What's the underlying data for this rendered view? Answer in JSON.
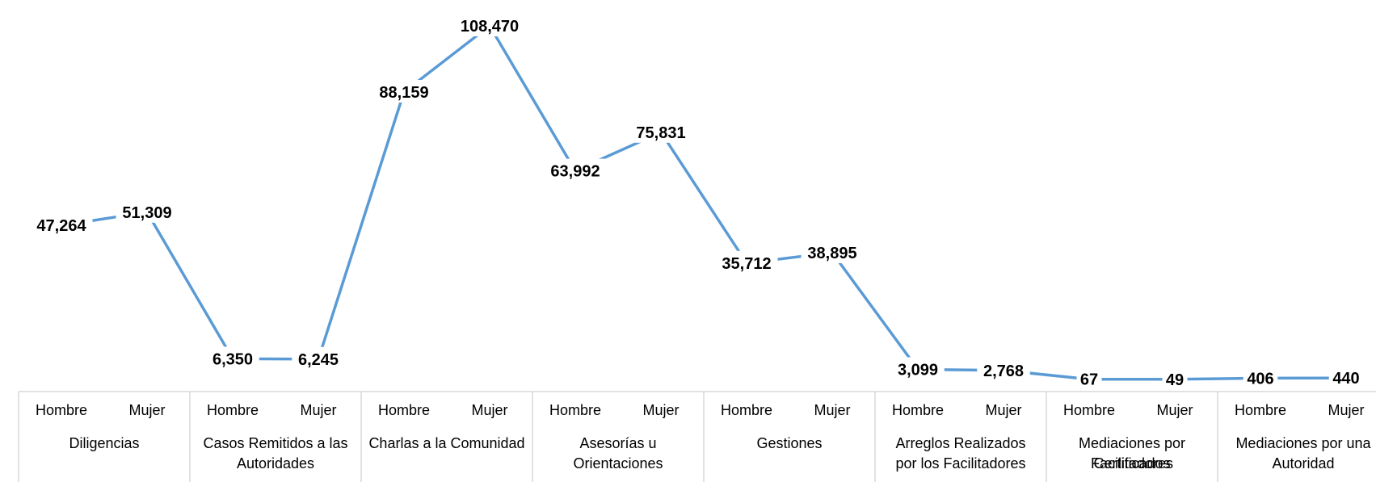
{
  "chart_data": {
    "type": "line",
    "title": "",
    "xlabel": "",
    "ylabel": "",
    "ylim": [
      0,
      108470
    ],
    "grid": false,
    "legend": "none",
    "line_color": "#5B9BD5",
    "sub_categories": [
      "Hombre",
      "Mujer"
    ],
    "groups": [
      {
        "label": "Diligencias",
        "values": [
          47264,
          51309
        ],
        "value_labels": [
          "47,264",
          "51,309"
        ]
      },
      {
        "label": "Casos Remitidos a las Autoridades",
        "values": [
          6350,
          6245
        ],
        "value_labels": [
          "6,350",
          "6,245"
        ]
      },
      {
        "label": "Charlas a la Comunidad",
        "values": [
          88159,
          108470
        ],
        "value_labels": [
          "88,159",
          "108,470"
        ]
      },
      {
        "label": "Asesorías u Orientaciones",
        "values": [
          63992,
          75831
        ],
        "value_labels": [
          "63,992",
          "75,831"
        ]
      },
      {
        "label": "Gestiones",
        "values": [
          35712,
          38895
        ],
        "value_labels": [
          "35,712",
          "38,895"
        ]
      },
      {
        "label": "Arreglos Realizados por los Facilitadores",
        "values": [
          3099,
          2768
        ],
        "value_labels": [
          "3,099",
          "2,768"
        ]
      },
      {
        "label": "Mediaciones por Facilitadores Certificados",
        "values": [
          67,
          49
        ],
        "value_labels": [
          "67",
          "49"
        ]
      },
      {
        "label": "Mediaciones por una Autoridad",
        "values": [
          406,
          440
        ],
        "value_labels": [
          "406",
          "440"
        ]
      }
    ]
  }
}
